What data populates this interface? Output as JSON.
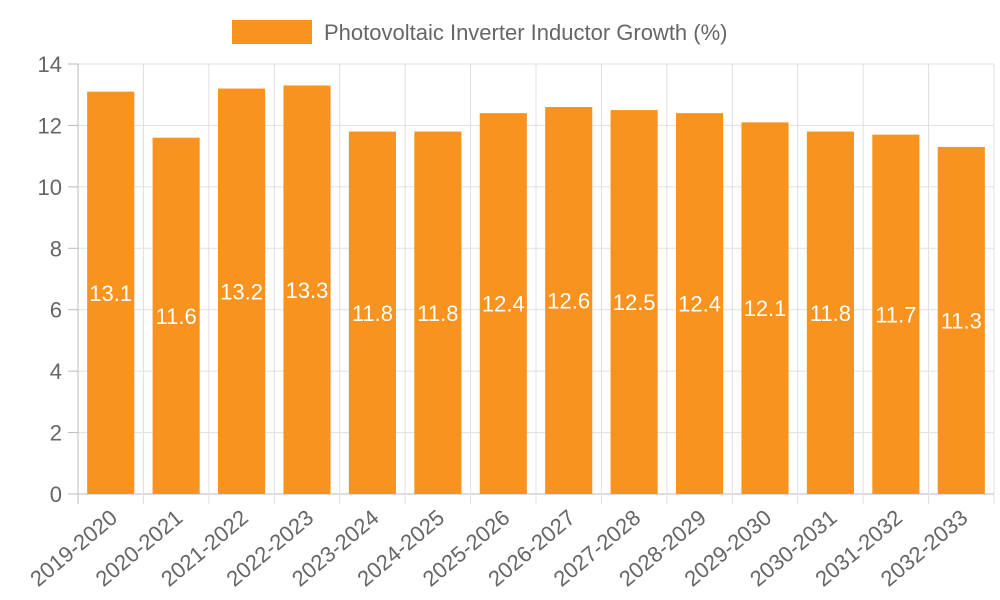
{
  "chart_data": {
    "type": "bar",
    "title": "",
    "xlabel": "",
    "ylabel": "",
    "legend": {
      "label": "Photovoltaic Inverter Inductor Growth (%)",
      "position": "top"
    },
    "categories": [
      "2019-2020",
      "2020-2021",
      "2021-2022",
      "2022-2023",
      "2023-2024",
      "2024-2025",
      "2025-2026",
      "2026-2027",
      "2027-2028",
      "2028-2029",
      "2029-2030",
      "2030-2031",
      "2031-2032",
      "2032-2033"
    ],
    "values": [
      13.1,
      11.6,
      13.2,
      13.3,
      11.8,
      11.8,
      12.4,
      12.6,
      12.5,
      12.4,
      12.1,
      11.8,
      11.7,
      11.3
    ],
    "ylim": [
      0,
      14
    ],
    "yticks": [
      0,
      2,
      4,
      6,
      8,
      10,
      12,
      14
    ],
    "grid": true,
    "colors": {
      "bar": "#f7931e",
      "grid": "#e0e0e0",
      "axis": "#bbbbbb",
      "label": "#ffffff",
      "tick": "#666666"
    }
  }
}
